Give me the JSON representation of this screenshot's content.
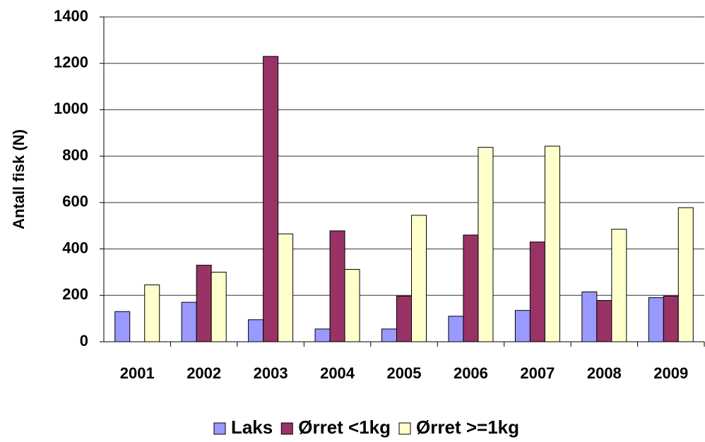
{
  "chart_data": {
    "type": "bar",
    "ylabel": "Antall fisk (N)",
    "categories": [
      "2001",
      "2002",
      "2003",
      "2004",
      "2005",
      "2006",
      "2007",
      "2008",
      "2009"
    ],
    "series": [
      {
        "name": "Laks",
        "color": "#9999ff",
        "values": [
          130,
          170,
          95,
          55,
          55,
          110,
          135,
          215,
          190
        ]
      },
      {
        "name": "Ørret <1kg",
        "color": "#993366",
        "values": [
          0,
          330,
          1230,
          478,
          197,
          460,
          430,
          178,
          197
        ]
      },
      {
        "name": "Ørret >=1kg",
        "color": "#ffffcc",
        "values": [
          245,
          300,
          465,
          312,
          545,
          838,
          843,
          485,
          578
        ]
      }
    ],
    "ylim": [
      0,
      1400
    ],
    "yticks": [
      0,
      200,
      400,
      600,
      800,
      1000,
      1200,
      1400
    ],
    "grid": true,
    "legend": "bottom"
  }
}
